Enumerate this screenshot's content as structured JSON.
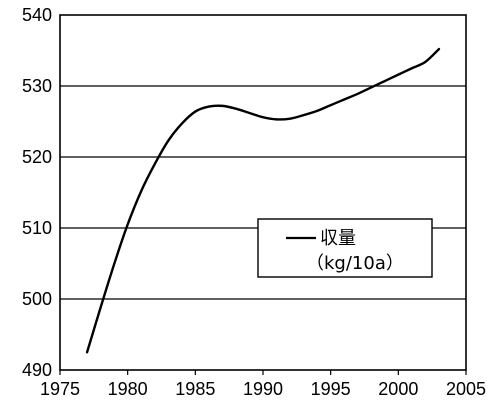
{
  "chart_data": {
    "type": "line",
    "title": "",
    "xlabel": "",
    "ylabel": "",
    "xlim": [
      1975,
      2005
    ],
    "ylim": [
      490,
      540
    ],
    "x_ticks": [
      1975,
      1980,
      1985,
      1990,
      1995,
      2000,
      2005
    ],
    "y_ticks": [
      490,
      500,
      510,
      520,
      530,
      540
    ],
    "grid": "horizontal",
    "legend": {
      "placement": "center-right",
      "label": "収量",
      "unit": "（kg/10a）"
    },
    "series": [
      {
        "name": "収量",
        "x": [
          1977,
          1978,
          1979,
          1980,
          1981,
          1982,
          1983,
          1984,
          1985,
          1986,
          1987,
          1988,
          1989,
          1990,
          1991,
          1992,
          1993,
          1994,
          1995,
          1996,
          1997,
          1998,
          1999,
          2000,
          2001,
          2002,
          2003
        ],
        "values": [
          492.5,
          498.8,
          504.9,
          510.5,
          515.2,
          519.0,
          522.3,
          524.7,
          526.4,
          527.1,
          527.2,
          526.8,
          526.2,
          525.6,
          525.3,
          525.4,
          525.9,
          526.5,
          527.3,
          528.1,
          528.9,
          529.8,
          530.7,
          531.6,
          532.5,
          533.4,
          535.2
        ],
        "color": "#000000"
      }
    ]
  }
}
